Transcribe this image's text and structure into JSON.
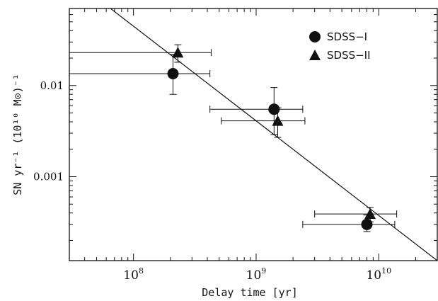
{
  "chart_data": {
    "type": "scatter",
    "title": "",
    "xlabel": "Delay time [yr]",
    "ylabel": "SN yr⁻¹ (10¹⁰ M⊙)⁻¹",
    "x_scale": "log",
    "y_scale": "log",
    "xlim": [
      30000000,
      30000000000
    ],
    "ylim": [
      0.00012,
      0.07
    ],
    "x_tick_labels": [
      {
        "value": 100000000,
        "base": "10",
        "exp": "8"
      },
      {
        "value": 1000000000,
        "base": "10",
        "exp": "9"
      },
      {
        "value": 10000000000,
        "base": "10",
        "exp": "10"
      }
    ],
    "y_tick_labels": [
      {
        "value": 0.01,
        "label": "0.01"
      },
      {
        "value": 0.001,
        "label": "0.001"
      }
    ],
    "grid": false,
    "legend_position": "top-right",
    "series": [
      {
        "name": "SDSS−I",
        "marker": "circle",
        "points": [
          {
            "x": 210000000,
            "y": 0.0135,
            "xerr": [
              30000000,
              420000000
            ],
            "yerr": [
              0.008,
              0.022
            ]
          },
          {
            "x": 1400000000,
            "y": 0.0055,
            "xerr": [
              420000000,
              2400000000
            ],
            "yerr": [
              0.0029,
              0.0095
            ]
          },
          {
            "x": 8000000000,
            "y": 0.0003,
            "xerr": [
              2400000000,
              13500000000
            ],
            "yerr": [
              0.00025,
              0.00038
            ]
          }
        ]
      },
      {
        "name": "SDSS−II",
        "marker": "triangle",
        "points": [
          {
            "x": 230000000,
            "y": 0.023,
            "xerr": [
              30000000,
              430000000
            ],
            "yerr": [
              0.018,
              0.028
            ]
          },
          {
            "x": 1500000000,
            "y": 0.0041,
            "xerr": [
              520000000,
              2500000000
            ],
            "yerr": [
              0.0027,
              0.0057
            ]
          },
          {
            "x": 8500000000,
            "y": 0.00039,
            "xerr": [
              3000000000,
              14000000000
            ],
            "yerr": [
              0.00032,
              0.00046
            ]
          }
        ]
      }
    ],
    "fit_line": {
      "points": [
        [
          65000000,
          0.07
        ],
        [
          30000000000,
          0.00012
        ]
      ]
    }
  }
}
